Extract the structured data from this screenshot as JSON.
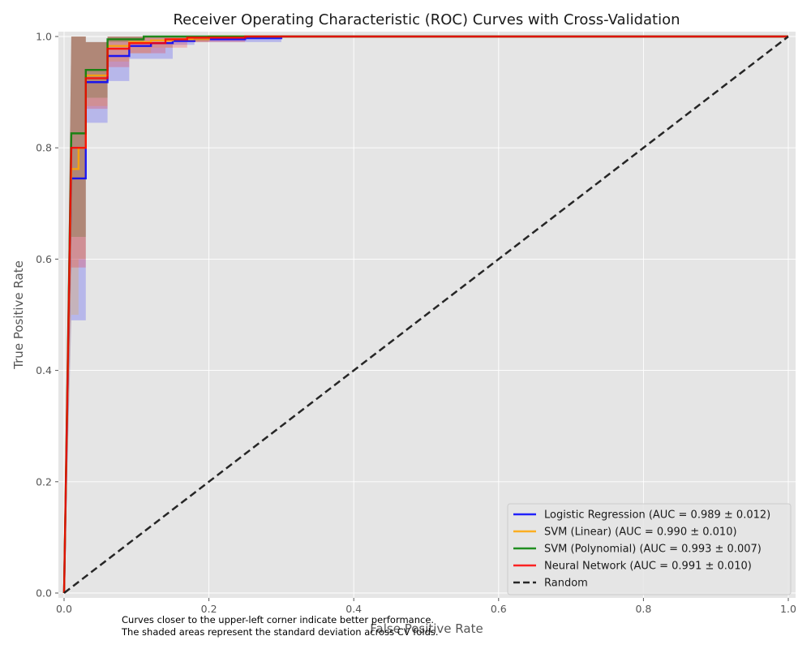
{
  "chart_data": {
    "type": "line",
    "title": "Receiver Operating Characteristic (ROC) Curves with Cross-Validation",
    "xlabel": "False Positive Rate",
    "ylabel": "True Positive Rate",
    "xlim": [
      0,
      1
    ],
    "ylim": [
      0,
      1
    ],
    "xticks": [
      "0.0",
      "0.2",
      "0.4",
      "0.6",
      "0.8",
      "1.0"
    ],
    "yticks": [
      "0.0",
      "0.2",
      "0.4",
      "0.6",
      "0.8",
      "1.0"
    ],
    "grid": true,
    "legend_position": "lower-right",
    "series": [
      {
        "name": "Logistic Regression (AUC = 0.989 ± 0.012)",
        "color": "#0000ff",
        "x": [
          0,
          0.01,
          0.02,
          0.03,
          0.05,
          0.06,
          0.08,
          0.09,
          0.12,
          0.15,
          0.18,
          0.25,
          0.3,
          1.0
        ],
        "y": [
          0,
          0.745,
          0.745,
          0.918,
          0.918,
          0.965,
          0.965,
          0.983,
          0.988,
          0.992,
          0.995,
          0.997,
          1.0,
          1.0
        ],
        "std_lower": [
          0,
          0.49,
          0.49,
          0.845,
          0.845,
          0.92,
          0.92,
          0.96,
          0.96,
          0.985,
          0.99,
          0.99,
          1.0,
          1.0
        ],
        "std_upper": [
          0,
          1.0,
          1.0,
          0.99,
          0.99,
          1.0,
          1.0,
          1.0,
          1.0,
          1.0,
          1.0,
          1.0,
          1.0,
          1.0
        ]
      },
      {
        "name": "SVM (Linear) (AUC = 0.990 ± 0.010)",
        "color": "#ffa500",
        "x": [
          0,
          0.01,
          0.02,
          0.03,
          0.05,
          0.06,
          0.08,
          0.09,
          0.12,
          0.15,
          0.2,
          1.0
        ],
        "y": [
          0,
          0.762,
          0.8,
          0.93,
          0.93,
          0.983,
          0.983,
          0.99,
          0.993,
          0.995,
          1.0,
          1.0
        ],
        "std_lower": [
          0,
          0.5,
          0.6,
          0.875,
          0.875,
          0.955,
          0.955,
          0.97,
          0.98,
          0.99,
          1.0,
          1.0
        ],
        "std_upper": [
          0,
          1.0,
          1.0,
          0.99,
          0.99,
          1.0,
          1.0,
          1.0,
          1.0,
          1.0,
          1.0,
          1.0
        ]
      },
      {
        "name": "SVM (Polynomial) (AUC = 0.993 ± 0.007)",
        "color": "#008000",
        "x": [
          0,
          0.01,
          0.02,
          0.03,
          0.05,
          0.06,
          0.09,
          0.11,
          0.2,
          1.0
        ],
        "y": [
          0,
          0.826,
          0.826,
          0.94,
          0.94,
          0.995,
          0.995,
          1.0,
          1.0,
          1.0
        ],
        "std_lower": [
          0,
          0.64,
          0.64,
          0.89,
          0.89,
          0.99,
          0.99,
          1.0,
          1.0,
          1.0
        ],
        "std_upper": [
          0,
          1.0,
          1.0,
          0.99,
          0.99,
          1.0,
          1.0,
          1.0,
          1.0,
          1.0
        ]
      },
      {
        "name": "Neural Network (AUC = 0.991 ± 0.010)",
        "color": "#ff0000",
        "x": [
          0,
          0.01,
          0.02,
          0.03,
          0.05,
          0.06,
          0.08,
          0.09,
          0.14,
          0.17,
          0.25,
          1.0
        ],
        "y": [
          0,
          0.8,
          0.8,
          0.925,
          0.925,
          0.978,
          0.978,
          0.988,
          0.995,
          0.998,
          1.0,
          1.0
        ],
        "std_lower": [
          0,
          0.585,
          0.585,
          0.87,
          0.87,
          0.945,
          0.945,
          0.97,
          0.98,
          0.99,
          1.0,
          1.0
        ],
        "std_upper": [
          0,
          1.0,
          1.0,
          0.99,
          0.99,
          1.0,
          1.0,
          1.0,
          1.0,
          1.0,
          1.0,
          1.0
        ]
      },
      {
        "name": "Random",
        "color": "#262626",
        "dashed": true,
        "x": [
          0,
          1
        ],
        "y": [
          0,
          1
        ]
      }
    ]
  },
  "footnote": {
    "line1": "Curves closer to the upper-left corner indicate better performance.",
    "line2": "The shaded areas represent the standard deviation across CV folds."
  }
}
